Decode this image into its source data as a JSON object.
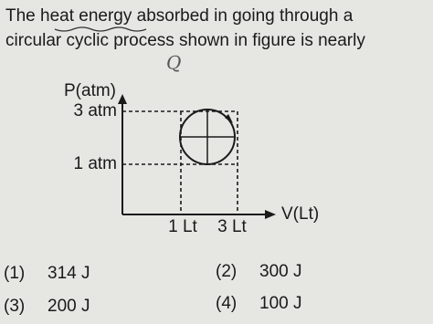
{
  "question": {
    "lines": [
      "The heat energy absorbed in going through a",
      "circular cyclic process shown in figure is nearly"
    ]
  },
  "annotation": "Q",
  "figure": {
    "y_axis_label": "P(atm)",
    "x_axis_label": "V(Lt)",
    "y_ticks": [
      "3 atm",
      "1 atm"
    ],
    "x_ticks": [
      "1 Lt",
      "3 Lt"
    ]
  },
  "options": [
    {
      "number": "(1)",
      "text": "314 J"
    },
    {
      "number": "(2)",
      "text": "300 J"
    },
    {
      "number": "(3)",
      "text": "200 J"
    },
    {
      "number": "(4)",
      "text": "100 J"
    }
  ]
}
